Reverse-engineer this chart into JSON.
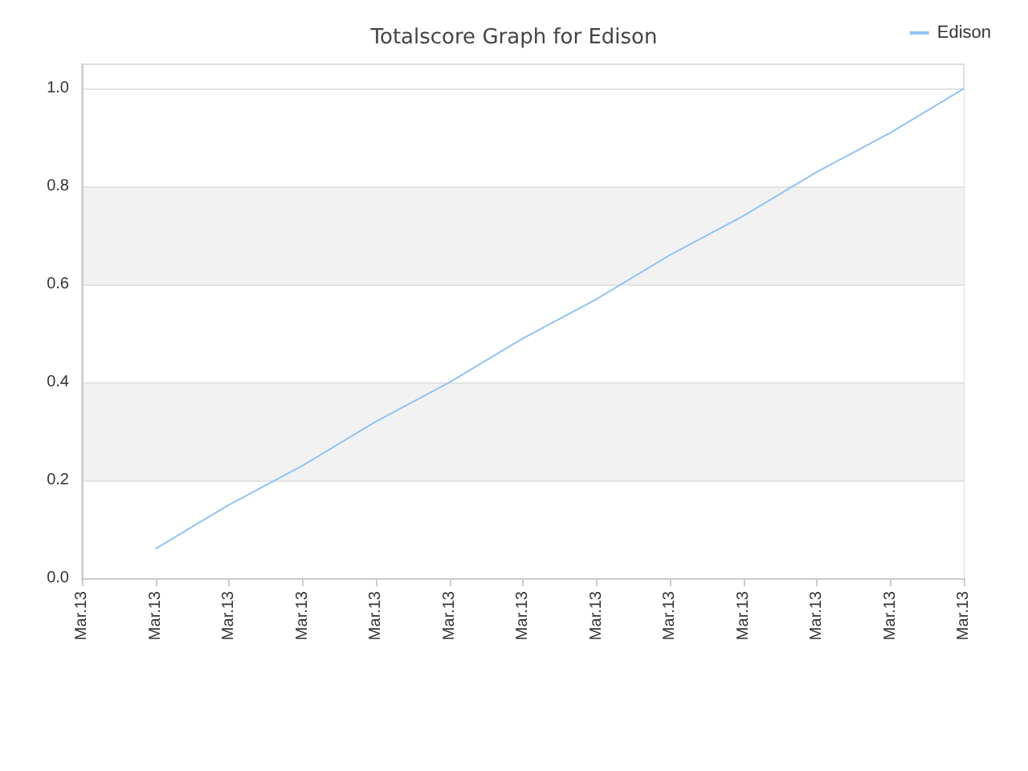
{
  "chart_data": {
    "type": "line",
    "title": "Totalscore Graph for Edison",
    "categories": [
      "Mar.13",
      "Mar.13",
      "Mar.13",
      "Mar.13",
      "Mar.13",
      "Mar.13",
      "Mar.13",
      "Mar.13",
      "Mar.13",
      "Mar.13",
      "Mar.13",
      "Mar.13",
      "Mar.13"
    ],
    "ylim": [
      0,
      1.05
    ],
    "yticks": [
      {
        "value": 0,
        "label": "0.0"
      },
      0.2,
      0.4,
      0.6,
      0.8,
      {
        "value": 1,
        "label": "1.0"
      }
    ],
    "series": [
      {
        "name": "Edison",
        "color": "#90c3f5",
        "values": [
          null,
          0.06,
          0.15,
          0.23,
          0.32,
          0.4,
          0.49,
          0.57,
          0.66,
          0.74,
          0.83,
          0.91,
          1.0
        ]
      }
    ],
    "grid": "y",
    "legend": "top right"
  }
}
